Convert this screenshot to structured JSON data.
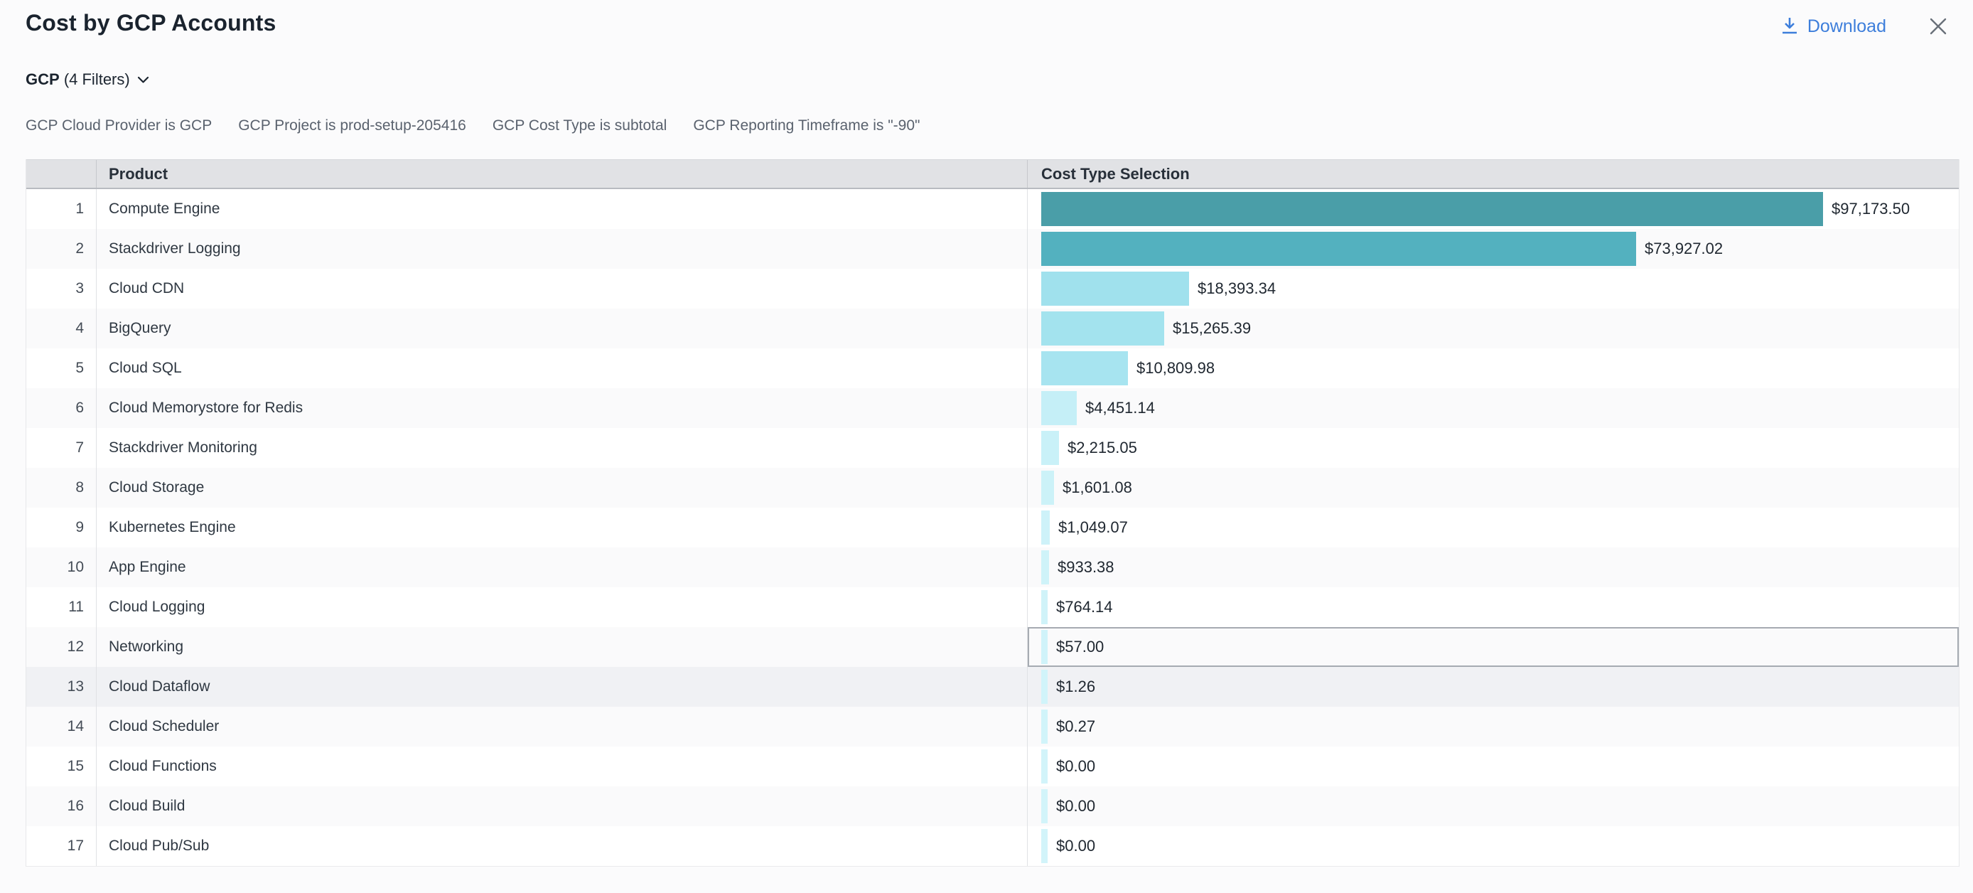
{
  "header": {
    "title": "Cost by GCP Accounts",
    "download_label": "Download"
  },
  "filters": {
    "group": {
      "name": "GCP",
      "count_label": "(4 Filters)"
    },
    "items": [
      "GCP Cloud Provider is GCP",
      "GCP Project is prod-setup-205416",
      "GCP Cost Type is subtotal",
      "GCP Reporting Timeframe is \"-90\""
    ]
  },
  "table": {
    "columns": [
      "",
      "Product",
      "Cost Type Selection"
    ],
    "selected_row": 12,
    "hovered_row": 13
  },
  "colors": {
    "accent_blue": "#3d7edb",
    "selected_cell_border": "#a6abb2",
    "header_bg": "#e1e2e5"
  },
  "chart_data": {
    "type": "bar",
    "orientation": "horizontal",
    "title": "Cost by GCP Accounts",
    "xlabel": "Cost Type Selection",
    "ylabel": "Product",
    "xlim": [
      0,
      97173.5
    ],
    "categories": [
      "Compute Engine",
      "Stackdriver Logging",
      "Cloud CDN",
      "BigQuery",
      "Cloud SQL",
      "Cloud Memorystore for Redis",
      "Stackdriver Monitoring",
      "Cloud Storage",
      "Kubernetes Engine",
      "App Engine",
      "Cloud Logging",
      "Networking",
      "Cloud Dataflow",
      "Cloud Scheduler",
      "Cloud Functions",
      "Cloud Build",
      "Cloud Pub/Sub"
    ],
    "values": [
      97173.5,
      73927.02,
      18393.34,
      15265.39,
      10809.98,
      4451.14,
      2215.05,
      1601.08,
      1049.07,
      933.38,
      764.14,
      57.0,
      1.26,
      0.27,
      0.0,
      0.0,
      0.0
    ],
    "value_labels": [
      "$97,173.50",
      "$73,927.02",
      "$18,393.34",
      "$15,265.39",
      "$10,809.98",
      "$4,451.14",
      "$2,215.05",
      "$1,601.08",
      "$1,049.07",
      "$933.38",
      "$764.14",
      "$57.00",
      "$1.26",
      "$0.27",
      "$0.00",
      "$0.00",
      "$0.00"
    ],
    "bar_colors": [
      "#4a9ea8",
      "#53b1bf",
      "#a0e1ed",
      "#a3e3ee",
      "#a7e4f0",
      "#c5eff7",
      "#c9f1f8",
      "#ccf2f8",
      "#cef2f9",
      "#cff3f9",
      "#d0f3f9",
      "#d0f3fa",
      "#d1f4fa",
      "#d1f4fa",
      "#d2f4fa",
      "#d2f4fa",
      "#d2f4fa"
    ]
  }
}
